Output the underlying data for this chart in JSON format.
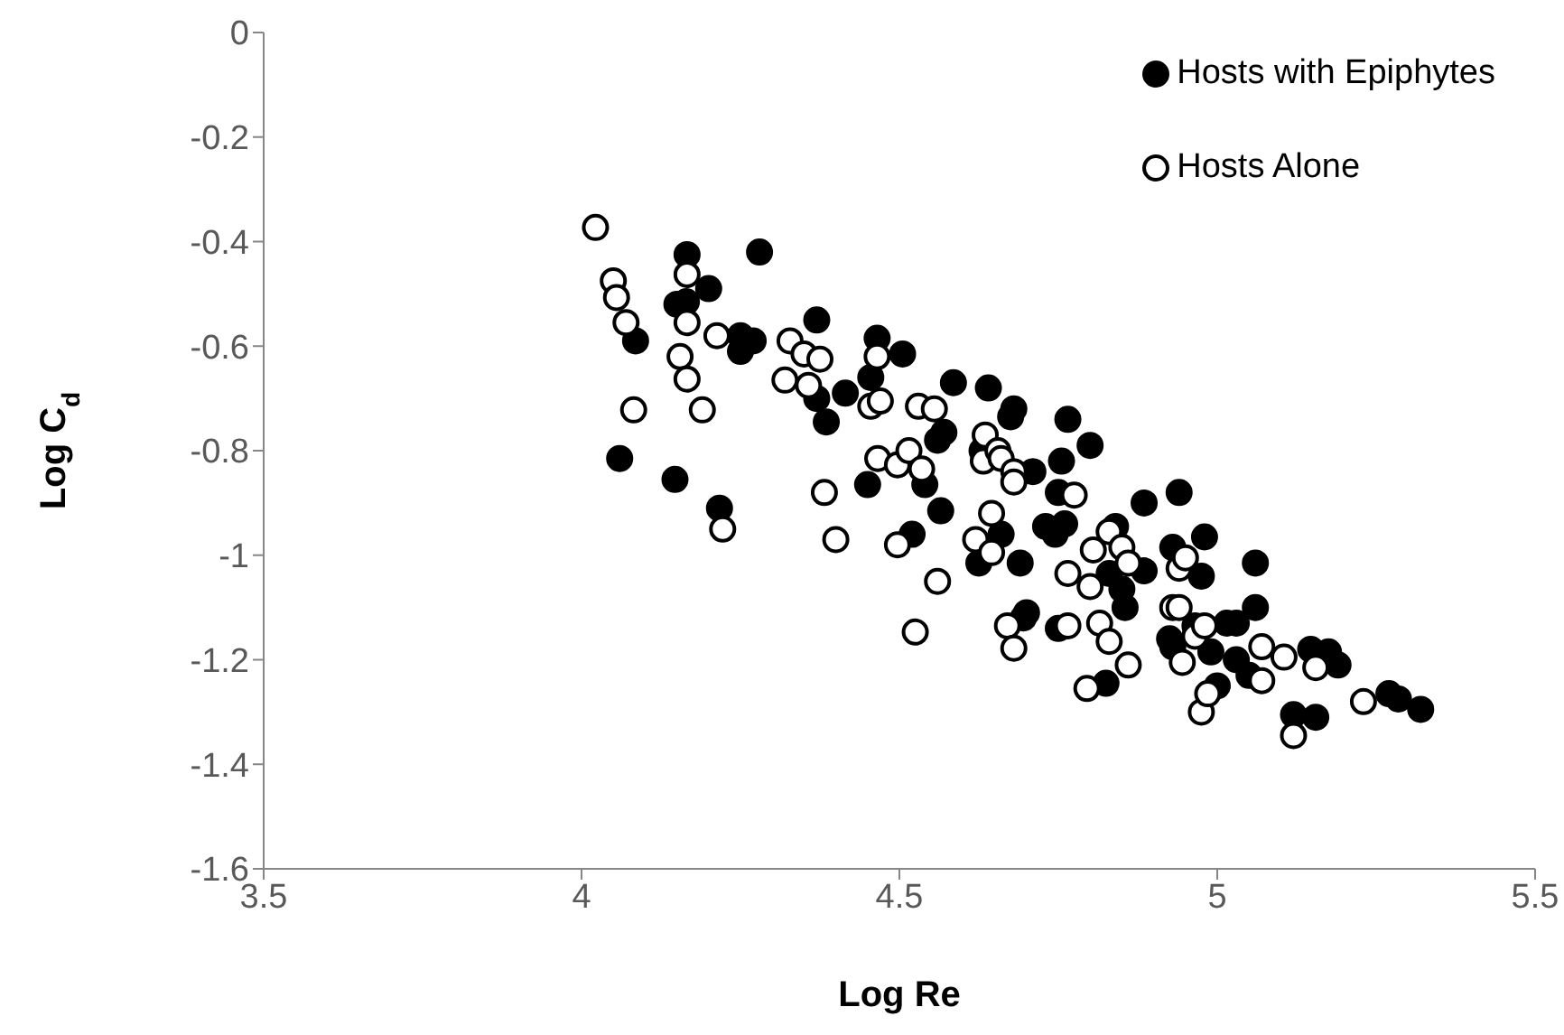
{
  "chart_data": {
    "type": "scatter",
    "xlabel": "Log Re",
    "ylabel": "Log C$_{d}$",
    "xlim": [
      3.5,
      5.5
    ],
    "xticks": [
      3.5,
      4,
      4.5,
      5,
      5.5
    ],
    "ylim": [
      -1.6,
      0
    ],
    "yticks": [
      -1.6,
      -1.4,
      -1.2,
      -1,
      -0.8,
      -0.6,
      -0.4,
      -0.2,
      0
    ],
    "grid": false,
    "legend": "top right",
    "marker": "circle",
    "series": [
      {
        "name": "Hosts with Epiphytes",
        "color": "#000000",
        "x": [
          4.166,
          4.28,
          4.2,
          4.15,
          4.165,
          4.085,
          4.25,
          4.27,
          4.25,
          4.37,
          4.465,
          4.505,
          4.455,
          4.37,
          4.415,
          4.385,
          4.585,
          4.64,
          4.68,
          4.675,
          4.765,
          4.8,
          4.56,
          4.57,
          4.63,
          4.755,
          4.71,
          4.45,
          4.54,
          4.75,
          4.94,
          4.885,
          4.73,
          4.745,
          4.76,
          4.84,
          4.565,
          4.06,
          4.147,
          4.217,
          4.52,
          4.66,
          4.625,
          4.69,
          4.98,
          4.93,
          5.06,
          4.975,
          4.83,
          4.885,
          4.85,
          4.855,
          4.7,
          4.695,
          4.75,
          5.06,
          4.925,
          4.93,
          4.965,
          5.015,
          5.03,
          4.99,
          5.03,
          5.05,
          5.0,
          4.825,
          5.147,
          5.175,
          5.19,
          5.27,
          5.285,
          5.32,
          5.12,
          5.155
        ],
        "values": [
          -0.425,
          -0.42,
          -0.49,
          -0.52,
          -0.515,
          -0.59,
          -0.58,
          -0.59,
          -0.61,
          -0.55,
          -0.585,
          -0.615,
          -0.66,
          -0.7,
          -0.69,
          -0.745,
          -0.67,
          -0.68,
          -0.72,
          -0.735,
          -0.74,
          -0.79,
          -0.78,
          -0.765,
          -0.8,
          -0.82,
          -0.84,
          -0.865,
          -0.865,
          -0.88,
          -0.88,
          -0.9,
          -0.945,
          -0.96,
          -0.94,
          -0.945,
          -0.915,
          -0.815,
          -0.855,
          -0.91,
          -0.96,
          -0.96,
          -1.015,
          -1.015,
          -0.965,
          -0.985,
          -1.015,
          -1.04,
          -1.035,
          -1.03,
          -1.065,
          -1.1,
          -1.11,
          -1.12,
          -1.14,
          -1.1,
          -1.16,
          -1.175,
          -1.135,
          -1.13,
          -1.13,
          -1.185,
          -1.2,
          -1.23,
          -1.25,
          -1.245,
          -1.18,
          -1.185,
          -1.21,
          -1.265,
          -1.275,
          -1.295,
          -1.305,
          -1.31
        ]
      },
      {
        "name": "Hosts Alone",
        "color": "#ffffff",
        "x": [
          4.022,
          4.05,
          4.055,
          4.07,
          4.082,
          4.166,
          4.166,
          4.155,
          4.166,
          4.19,
          4.213,
          4.222,
          4.328,
          4.35,
          4.375,
          4.32,
          4.357,
          4.455,
          4.47,
          4.465,
          4.53,
          4.555,
          4.382,
          4.4,
          4.466,
          4.497,
          4.515,
          4.535,
          4.497,
          4.56,
          4.525,
          4.635,
          4.632,
          4.655,
          4.66,
          4.68,
          4.68,
          4.645,
          4.62,
          4.645,
          4.67,
          4.68,
          4.775,
          4.765,
          4.765,
          4.8,
          4.805,
          4.815,
          4.83,
          4.83,
          4.85,
          4.86,
          4.86,
          4.795,
          4.93,
          4.94,
          4.94,
          4.95,
          4.965,
          4.945,
          4.98,
          4.975,
          4.985,
          5.07,
          5.07,
          5.105,
          5.155,
          5.12,
          5.23
        ],
        "values": [
          -0.373,
          -0.475,
          -0.507,
          -0.555,
          -0.722,
          -0.463,
          -0.555,
          -0.62,
          -0.663,
          -0.722,
          -0.58,
          -0.95,
          -0.59,
          -0.615,
          -0.625,
          -0.665,
          -0.675,
          -0.715,
          -0.705,
          -0.62,
          -0.715,
          -0.72,
          -0.88,
          -0.97,
          -0.815,
          -0.827,
          -0.8,
          -0.835,
          -0.98,
          -1.05,
          -1.147,
          -0.77,
          -0.82,
          -0.8,
          -0.815,
          -0.84,
          -0.86,
          -0.92,
          -0.97,
          -0.995,
          -1.135,
          -1.178,
          -0.885,
          -1.035,
          -1.135,
          -1.06,
          -0.99,
          -1.13,
          -1.165,
          -0.955,
          -0.985,
          -1.015,
          -1.21,
          -1.255,
          -1.1,
          -1.1,
          -1.025,
          -1.005,
          -1.155,
          -1.205,
          -1.135,
          -1.3,
          -1.265,
          -1.175,
          -1.24,
          -1.195,
          -1.215,
          -1.345,
          -1.28
        ]
      }
    ]
  }
}
